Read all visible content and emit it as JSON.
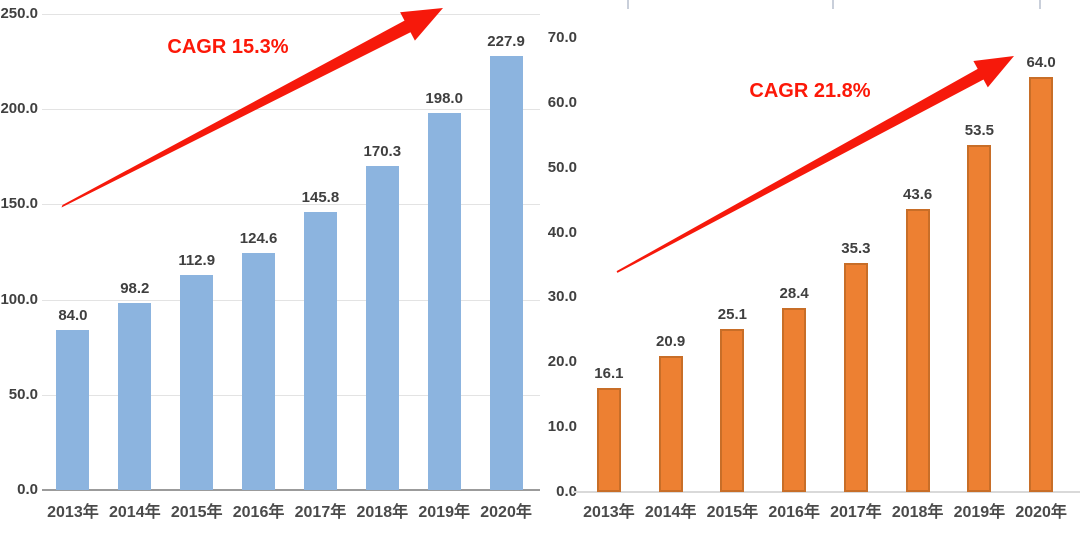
{
  "chart_data": [
    {
      "type": "bar",
      "side": "left",
      "title": "",
      "xlabel": "",
      "ylabel": "",
      "categories": [
        "2013年",
        "2014年",
        "2015年",
        "2016年",
        "2017年",
        "2018年",
        "2019年",
        "2020年"
      ],
      "values": [
        84.0,
        98.2,
        112.9,
        124.6,
        145.8,
        170.3,
        198.0,
        227.9
      ],
      "value_labels": [
        "84.0",
        "98.2",
        "112.9",
        "124.6",
        "145.8",
        "170.3",
        "198.0",
        "227.9"
      ],
      "annotation": "CAGR 15.3%",
      "ylim": [
        0,
        250
      ],
      "ytick_step": 50,
      "y_ticks": [
        "250.0",
        "200.0",
        "150.0",
        "100.0",
        "50.0",
        "0.0"
      ],
      "grid": true,
      "legend": "none",
      "bar_color": "#8CB4DF",
      "bar_border": "",
      "axis_color": "#9B9B9B"
    },
    {
      "type": "bar",
      "side": "right",
      "title": "",
      "xlabel": "",
      "ylabel": "",
      "categories": [
        "2013年",
        "2014年",
        "2015年",
        "2016年",
        "2017年",
        "2018年",
        "2019年",
        "2020年"
      ],
      "values": [
        16.1,
        20.9,
        25.1,
        28.4,
        35.3,
        43.6,
        53.5,
        64.0
      ],
      "value_labels": [
        "16.1",
        "20.9",
        "25.1",
        "28.4",
        "35.3",
        "43.6",
        "53.5",
        "64.0"
      ],
      "annotation": "CAGR 21.8%",
      "ylim": [
        0,
        70
      ],
      "ytick_step": 10,
      "y_ticks": [
        "70.0",
        "60.0",
        "50.0",
        "40.0",
        "30.0",
        "20.0",
        "10.0",
        "0.0"
      ],
      "grid": false,
      "legend": "none",
      "bar_color": "#ED8032",
      "bar_border": "#C86E28",
      "axis_color": "#D9D9D9"
    }
  ],
  "colors": {
    "arrow": "#F6190B",
    "annotation_text": "#FC1808",
    "grid_line": "#E3E3E3",
    "tick_text": "#404040",
    "value_text": "#3F3F3F",
    "category_text": "#4A4A4A",
    "background": "#FFFFFF"
  }
}
